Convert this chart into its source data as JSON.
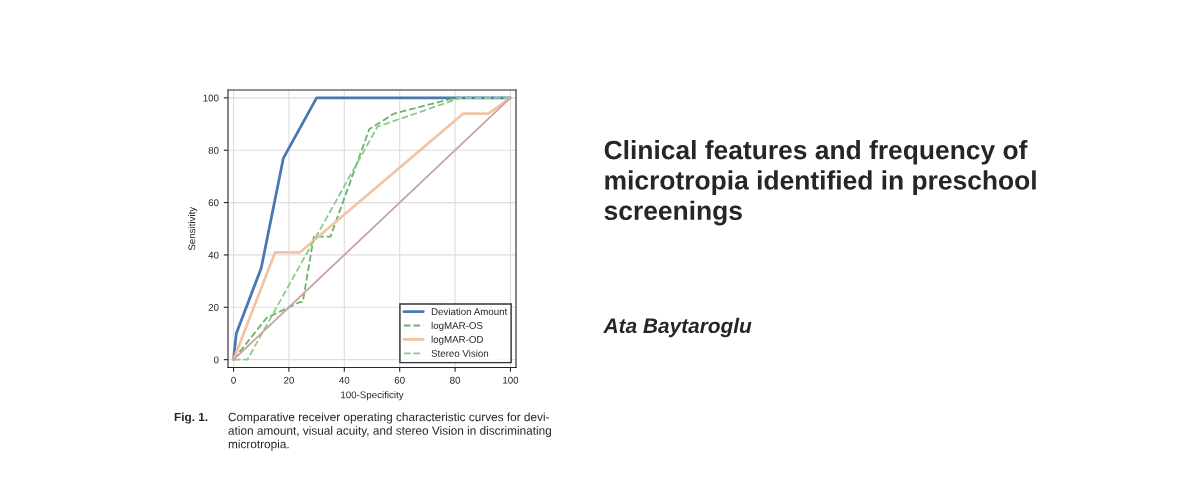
{
  "chart_data": {
    "type": "line",
    "title": "Clinical features and frequency of\nmicrotropia identified in preschool\nscreenings",
    "subtitle": "Ata Baytaroglu",
    "xlabel": "100-Specificity",
    "ylabel": "Sensitivity",
    "annotations": [
      "Fig. 1.",
      "Comparative receiver operating characteristic curves for devi-\nation amount, visual acuity, and stereo Vision in discriminating\nmicrotropia."
    ],
    "xlim": [
      -2,
      102
    ],
    "ylim": [
      -3,
      103
    ],
    "xticks": [
      0,
      20,
      40,
      60,
      80,
      100
    ],
    "yticks": [
      0,
      20,
      40,
      60,
      80,
      100
    ],
    "grid": true,
    "legend": "bottom right",
    "series": [
      {
        "name": "Deviation Amount",
        "color": "#4a78b0",
        "line_style": "solid",
        "x": [
          0,
          1,
          10,
          18,
          30,
          100
        ],
        "values": [
          0,
          10,
          35,
          77,
          100,
          100
        ]
      },
      {
        "name": "logMAR-OS",
        "color": "#6cb36c",
        "line_style": "dashed",
        "x": [
          0,
          12,
          24,
          25,
          29,
          35,
          49,
          58,
          80,
          100
        ],
        "values": [
          0,
          16,
          22,
          22,
          47,
          47,
          88,
          94,
          100,
          100
        ]
      },
      {
        "name": "logMAR-OD",
        "color": "#f2c4a4",
        "line_style": "solid",
        "x": [
          0,
          15,
          24,
          83,
          92,
          100
        ],
        "values": [
          0,
          41,
          41,
          94,
          94,
          100
        ]
      },
      {
        "name": "Stereo Vision",
        "color": "#8acb8a",
        "line_style": "dashed",
        "x": [
          0,
          5,
          52,
          82,
          100
        ],
        "values": [
          0,
          0,
          89,
          100,
          100
        ]
      },
      {
        "color": "#c9a3a3",
        "line_style": "solid",
        "x": [
          0,
          100
        ],
        "values": [
          0,
          100
        ]
      }
    ]
  }
}
